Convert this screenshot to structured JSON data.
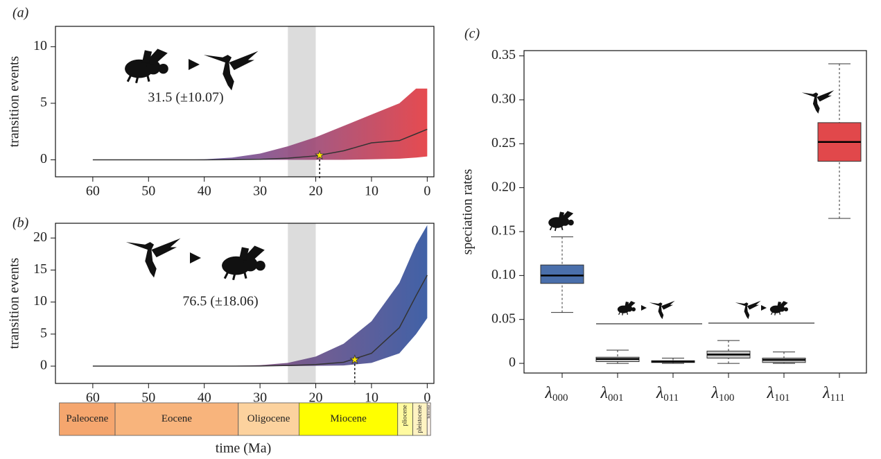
{
  "chart_data": [
    {
      "type": "band",
      "panel_label": "(a)",
      "ylabel": "transition events",
      "annotation": "31.5 (±10.07)",
      "xlim": [
        66.7,
        -1.2
      ],
      "xticks": [
        60,
        50,
        40,
        30,
        20,
        10,
        0
      ],
      "ylim": [
        -1.5,
        11.8
      ],
      "yticks": [
        0,
        5,
        10
      ],
      "x": [
        60,
        55,
        50,
        45,
        40,
        35,
        30,
        25,
        20,
        15,
        10,
        5,
        2,
        0
      ],
      "mean": [
        0,
        0,
        0,
        0,
        0,
        0.02,
        0.05,
        0.15,
        0.35,
        0.8,
        1.5,
        1.7,
        2.3,
        2.7
      ],
      "lower": [
        0,
        0,
        0,
        0,
        0,
        0,
        0,
        0,
        0,
        0,
        0.05,
        0.1,
        0.2,
        0.3
      ],
      "upper": [
        0,
        0,
        0,
        0,
        0.05,
        0.2,
        0.55,
        1.2,
        2.0,
        3.0,
        4.0,
        5.0,
        6.3,
        6.3
      ],
      "band_colors": [
        "#5a4b9c",
        "#ea4a4d"
      ],
      "line_color": "#333333",
      "shaded_interval": [
        25,
        20
      ],
      "marker": {
        "x": 19.3,
        "y": 0.4
      }
    },
    {
      "type": "band",
      "panel_label": "(b)",
      "ylabel": "transition events",
      "annotation": "76.5 (±18.06)",
      "xlabel": "time (Ma)",
      "xlim": [
        66.7,
        -1.2
      ],
      "xticks": [
        60,
        50,
        40,
        30,
        20,
        10,
        0
      ],
      "ylim": [
        -2.7,
        22.3
      ],
      "yticks": [
        0,
        5,
        10,
        15,
        20
      ],
      "x": [
        60,
        55,
        50,
        45,
        40,
        35,
        30,
        25,
        20,
        15,
        10,
        5,
        2,
        0
      ],
      "mean": [
        0,
        0,
        0,
        0,
        0,
        0,
        0.02,
        0.1,
        0.25,
        0.6,
        2.0,
        6.0,
        11.0,
        14.2
      ],
      "lower": [
        0,
        0,
        0,
        0,
        0,
        0,
        0,
        0,
        0.05,
        0.1,
        0.5,
        2.0,
        5.0,
        7.5
      ],
      "upper": [
        0,
        0,
        0,
        0,
        0,
        0.05,
        0.15,
        0.5,
        1.5,
        3.5,
        7.0,
        13.0,
        19.0,
        22.0
      ],
      "band_colors": [
        "#8c3e6c",
        "#3e62a8"
      ],
      "line_color": "#333333",
      "shaded_interval": [
        25,
        20
      ],
      "marker": {
        "x": 13,
        "y": 1.0
      },
      "epochs": [
        {
          "name": "Paleocene",
          "start": 66,
          "end": 56,
          "color": "#f5a66e"
        },
        {
          "name": "Eocene",
          "start": 56,
          "end": 33.9,
          "color": "#f8b47c"
        },
        {
          "name": "Oligocene",
          "start": 33.9,
          "end": 23,
          "color": "#fcd29e"
        },
        {
          "name": "Miocene",
          "start": 23,
          "end": 5.3,
          "color": "#ffff00"
        },
        {
          "name": "pliocene",
          "start": 5.3,
          "end": 2.58,
          "color": "#fffaa0"
        },
        {
          "name": "pleistocene",
          "start": 2.58,
          "end": 0.0117,
          "color": "#fff3c2"
        },
        {
          "name": "holocene",
          "start": 0.0117,
          "end": -0.6,
          "color": "#fdf0e4"
        }
      ]
    },
    {
      "type": "box",
      "panel_label": "(c)",
      "ylabel": "speciation rates",
      "categories": [
        "λ000",
        "λ001",
        "λ011",
        "λ100",
        "λ101",
        "λ111"
      ],
      "ylim": [
        -0.011,
        0.356
      ],
      "yticks": [
        0,
        0.05,
        {
          "value": 0.1,
          "label": "0.10"
        },
        0.15,
        {
          "value": 0.2,
          "label": "0.20"
        },
        0.25,
        {
          "value": 0.3,
          "label": "0.30"
        },
        0.35
      ],
      "boxes": [
        {
          "low": 0.058,
          "q1": 0.091,
          "median": 0.1,
          "q3": 0.112,
          "high": 0.144,
          "color": "#4a6fab"
        },
        {
          "low": 0,
          "q1": 0.002,
          "median": 0.005,
          "q3": 0.007,
          "high": 0.015,
          "color": "#c8c8c8"
        },
        {
          "low": 0,
          "q1": 0.001,
          "median": 0.002,
          "q3": 0.003,
          "high": 0.006,
          "color": "#c8c8c8"
        },
        {
          "low": 0,
          "q1": 0.006,
          "median": 0.01,
          "q3": 0.014,
          "high": 0.026,
          "color": "#c8c8c8"
        },
        {
          "low": 0,
          "q1": 0.001,
          "median": 0.004,
          "q3": 0.006,
          "high": 0.013,
          "color": "#c8c8c8"
        },
        {
          "low": 0.165,
          "q1": 0.23,
          "median": 0.252,
          "q3": 0.274,
          "high": 0.341,
          "color": "#e1484b"
        }
      ]
    }
  ]
}
